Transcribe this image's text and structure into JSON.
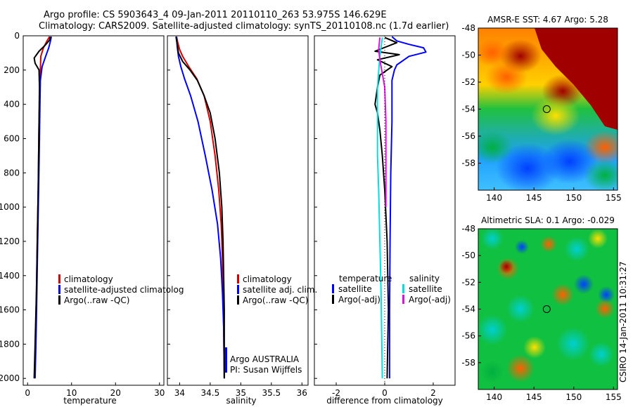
{
  "header": {
    "title_line1": "Argo profile: CS 5903643_4 09-Jan-2011 20110110_263 53.975S 146.629E",
    "title_line2": "Climatology: CARS2009. Satellite-adjusted climatology: synTS_20110108.nc (1.7d earlier)"
  },
  "footer": {
    "side_text": "CSIRO 14-Jan-2011 10:31:27"
  },
  "chart_data": [
    {
      "type": "line",
      "xlabel": "temperature",
      "xlim": [
        -1,
        31
      ],
      "xticks": [
        0,
        10,
        20,
        30
      ],
      "ylim": [
        0,
        2040
      ],
      "yticks": [
        0,
        200,
        400,
        600,
        800,
        1000,
        1200,
        1400,
        1600,
        1800,
        2000
      ],
      "y_reversed": true,
      "legend": {
        "placement": "lower-right",
        "entries": [
          {
            "label": "climatology",
            "color": "#d40000"
          },
          {
            "label": "satellite-adjusted climatolog",
            "color": "#0000ff"
          },
          {
            "label": "Argo(..raw -QC)",
            "color": "#000000"
          }
        ]
      },
      "series": [
        {
          "color": "#d40000",
          "points": [
            [
              5.0,
              5
            ],
            [
              4.4,
              30
            ],
            [
              3.6,
              70
            ],
            [
              3.0,
              120
            ],
            [
              2.9,
              200
            ],
            [
              2.8,
              300
            ],
            [
              2.6,
              500
            ],
            [
              2.5,
              700
            ],
            [
              2.4,
              900
            ],
            [
              2.2,
              1200
            ],
            [
              2.0,
              1500
            ],
            [
              1.8,
              1800
            ],
            [
              1.6,
              2000
            ]
          ]
        },
        {
          "color": "#0000ff",
          "points": [
            [
              5.4,
              5
            ],
            [
              5.2,
              30
            ],
            [
              4.8,
              70
            ],
            [
              4.1,
              120
            ],
            [
              3.3,
              180
            ],
            [
              2.9,
              260
            ],
            [
              2.8,
              400
            ],
            [
              2.7,
              600
            ],
            [
              2.5,
              900
            ],
            [
              2.3,
              1200
            ],
            [
              2.1,
              1500
            ],
            [
              1.9,
              1800
            ],
            [
              1.7,
              2000
            ]
          ]
        },
        {
          "color": "#000000",
          "points": [
            [
              5.2,
              5
            ],
            [
              5.0,
              25
            ],
            [
              4.0,
              55
            ],
            [
              2.6,
              90
            ],
            [
              1.5,
              130
            ],
            [
              1.7,
              160
            ],
            [
              2.6,
              200
            ],
            [
              2.7,
              300
            ],
            [
              2.6,
              500
            ],
            [
              2.5,
              700
            ],
            [
              2.4,
              900
            ],
            [
              2.2,
              1200
            ],
            [
              2.0,
              1500
            ],
            [
              1.7,
              1800
            ],
            [
              1.5,
              2000
            ]
          ]
        }
      ]
    },
    {
      "type": "line",
      "xlabel": "salinity",
      "xlim": [
        33.8,
        36.1
      ],
      "xticks": [
        34,
        34.5,
        35,
        35.5,
        36
      ],
      "ylim": [
        0,
        2040
      ],
      "y_reversed": true,
      "legend": {
        "placement": "lower-right",
        "entries": [
          {
            "label": "climatology",
            "color": "#d40000"
          },
          {
            "label": "satellite adj. clim.",
            "color": "#0000ff"
          },
          {
            "label": "Argo(..raw -QC)",
            "color": "#000000"
          }
        ]
      },
      "annotation_lines": [
        "Argo AUSTRALIA",
        "PI: Susan Wijffels"
      ],
      "series": [
        {
          "color": "#d40000",
          "points": [
            [
              33.95,
              5
            ],
            [
              33.97,
              40
            ],
            [
              34.0,
              80
            ],
            [
              34.05,
              120
            ],
            [
              34.15,
              180
            ],
            [
              34.28,
              250
            ],
            [
              34.4,
              350
            ],
            [
              34.5,
              500
            ],
            [
              34.58,
              700
            ],
            [
              34.64,
              900
            ],
            [
              34.68,
              1100
            ],
            [
              34.7,
              1300
            ],
            [
              34.71,
              1500
            ],
            [
              34.72,
              1700
            ],
            [
              34.73,
              2000
            ]
          ]
        },
        {
          "color": "#0000ff",
          "points": [
            [
              33.95,
              5
            ],
            [
              33.96,
              60
            ],
            [
              33.98,
              120
            ],
            [
              34.02,
              180
            ],
            [
              34.08,
              250
            ],
            [
              34.18,
              350
            ],
            [
              34.3,
              500
            ],
            [
              34.42,
              700
            ],
            [
              34.53,
              900
            ],
            [
              34.62,
              1100
            ],
            [
              34.67,
              1300
            ],
            [
              34.7,
              1500
            ],
            [
              34.72,
              1700
            ],
            [
              34.73,
              2000
            ]
          ]
        },
        {
          "color": "#000000",
          "points": [
            [
              33.94,
              5
            ],
            [
              33.96,
              50
            ],
            [
              33.98,
              100
            ],
            [
              34.05,
              150
            ],
            [
              34.17,
              200
            ],
            [
              34.29,
              260
            ],
            [
              34.4,
              350
            ],
            [
              34.5,
              450
            ],
            [
              34.58,
              600
            ],
            [
              34.65,
              800
            ],
            [
              34.69,
              1000
            ],
            [
              34.71,
              1200
            ],
            [
              34.72,
              1400
            ],
            [
              34.73,
              1600
            ],
            [
              34.73,
              1800
            ],
            [
              34.73,
              2000
            ]
          ]
        }
      ]
    },
    {
      "type": "line",
      "xlabel": "difference from climatology",
      "xlim": [
        -2.9,
        2.9
      ],
      "xticks": [
        -2,
        0,
        2
      ],
      "ylim": [
        0,
        2040
      ],
      "y_reversed": true,
      "legend": {
        "placement": "lower-center",
        "groups": [
          {
            "heading": "temperature",
            "entries": [
              {
                "label": "satellite",
                "color": "#0000ff"
              },
              {
                "label": "Argo(-adj)",
                "color": "#000000"
              }
            ]
          },
          {
            "heading": "salinity",
            "entries": [
              {
                "label": "satellite",
                "color": "#00e0e0"
              },
              {
                "label": "Argo(-adj)",
                "color": "#e010e0"
              }
            ]
          }
        ]
      },
      "series": [
        {
          "color": "#0000ff",
          "points": [
            [
              0.3,
              5
            ],
            [
              0.5,
              30
            ],
            [
              1.0,
              50
            ],
            [
              1.6,
              70
            ],
            [
              1.7,
              95
            ],
            [
              1.0,
              120
            ],
            [
              0.5,
              170
            ],
            [
              0.4,
              200
            ],
            [
              0.3,
              260
            ],
            [
              0.3,
              300
            ],
            [
              0.3,
              500
            ],
            [
              0.25,
              800
            ],
            [
              0.22,
              1200
            ],
            [
              0.2,
              1600
            ],
            [
              0.2,
              2000
            ]
          ]
        },
        {
          "color": "#000000",
          "points": [
            [
              0.0,
              10
            ],
            [
              0.5,
              40
            ],
            [
              -0.4,
              90
            ],
            [
              0.6,
              110
            ],
            [
              -0.3,
              140
            ],
            [
              0.3,
              180
            ],
            [
              -0.2,
              230
            ],
            [
              -0.3,
              300
            ],
            [
              -0.4,
              400
            ],
            [
              -0.3,
              450
            ],
            [
              -0.2,
              550
            ],
            [
              -0.1,
              700
            ],
            [
              0.0,
              900
            ],
            [
              0.1,
              1200
            ],
            [
              0.15,
              1600
            ],
            [
              0.1,
              2000
            ]
          ]
        },
        {
          "color": "#00e0e0",
          "points": [
            [
              -0.1,
              10
            ],
            [
              -0.2,
              120
            ],
            [
              -0.3,
              300
            ],
            [
              -0.3,
              500
            ],
            [
              -0.3,
              700
            ],
            [
              -0.25,
              900
            ],
            [
              -0.2,
              1200
            ],
            [
              -0.15,
              1500
            ],
            [
              -0.1,
              2000
            ]
          ]
        },
        {
          "color": "#e010e0",
          "points": [
            [
              -0.2,
              10
            ],
            [
              -0.25,
              80
            ],
            [
              -0.2,
              140
            ],
            [
              0.0,
              300
            ],
            [
              0.05,
              500
            ],
            [
              0.05,
              800
            ],
            [
              0.05,
              1000
            ]
          ]
        }
      ]
    },
    {
      "type": "heatmap",
      "title": "AMSR-E SST: 4.67 Argo: 5.28",
      "xlim": [
        138,
        155.5
      ],
      "xticks": [
        140,
        145,
        150,
        155
      ],
      "ylim": [
        -60,
        -48
      ],
      "yticks": [
        -48,
        -50,
        -52,
        -54,
        -56,
        -58
      ],
      "marker": {
        "lon": 146.6,
        "lat": -54.0
      },
      "colors": [
        "#a00000",
        "#ffa000",
        "#00b030",
        "#0080ff"
      ]
    },
    {
      "type": "heatmap",
      "title": "Altimetric SLA: 0.1 Argo: -0.029",
      "xlim": [
        138,
        155.5
      ],
      "xticks": [
        140,
        145,
        150,
        155
      ],
      "ylim": [
        -60,
        -48
      ],
      "yticks": [
        -48,
        -50,
        -52,
        -54,
        -56,
        -58
      ],
      "marker": {
        "lon": 146.6,
        "lat": -54.0
      },
      "colors": [
        "#00c040",
        "#00c0c0",
        "#e04000"
      ]
    }
  ]
}
